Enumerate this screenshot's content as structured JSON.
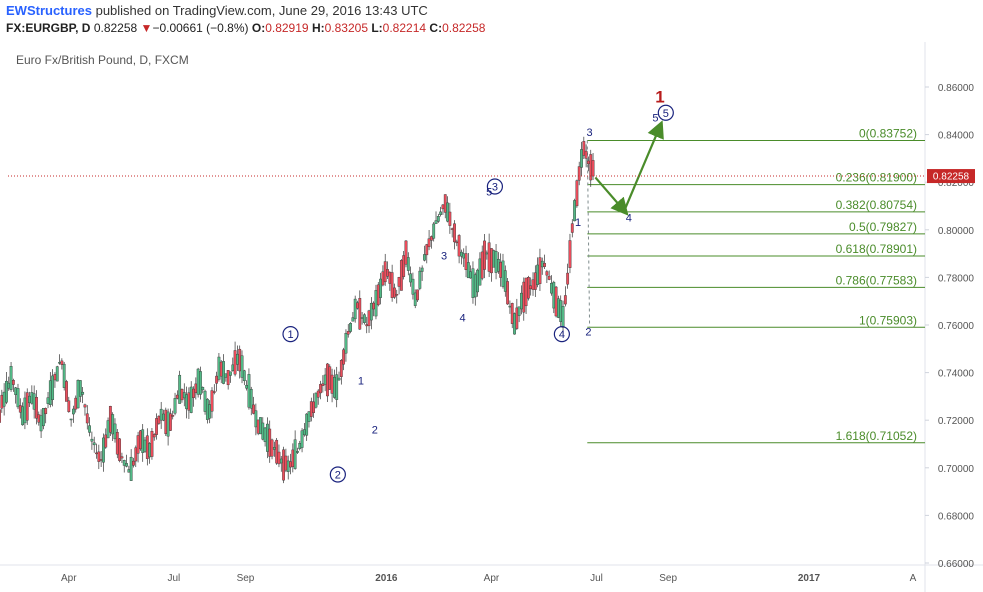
{
  "header": {
    "author": "EWStructures",
    "published_text": "published on TradingView.com, June 29, 2016 13:43 UTC",
    "symbol": "FX:EURGBP, D",
    "last": "0.82258",
    "change_arrow": "▼",
    "change": "−0.00661 (−0.8%)",
    "open_label": "O:",
    "open": "0.82919",
    "high_label": "H:",
    "high": "0.83205",
    "low_label": "L:",
    "low": "0.82214",
    "close_label": "C:",
    "close": "0.82258"
  },
  "chart_data": {
    "type": "candlestick",
    "title": "Euro Fx/British Pound, D, FXCM",
    "ylim": [
      0.66,
      0.868
    ],
    "y_ticks": [
      "0.86000",
      "0.84000",
      "0.82000",
      "0.80000",
      "0.78000",
      "0.76000",
      "0.74000",
      "0.72000",
      "0.70000",
      "0.68000",
      "0.66000"
    ],
    "x_ticks": [
      "Apr",
      "Jul",
      "Sep",
      "2016",
      "Apr",
      "Jul",
      "Sep",
      "2017",
      "A"
    ],
    "last_price": 0.82258,
    "last_price_label": "0.82258",
    "colors": {
      "up": "#53b987",
      "down": "#eb4d5c",
      "fib": "#4a8c2a",
      "wave": "#1a237e",
      "target": "#b71c1c",
      "price_line": "#c62828",
      "axis_text": "#555555"
    },
    "price_path": [
      [
        0.705,
        0.73
      ],
      [
        0.728,
        0.738
      ],
      [
        0.738,
        0.722
      ],
      [
        0.722,
        0.73
      ],
      [
        0.73,
        0.718
      ],
      [
        0.718,
        0.733
      ],
      [
        0.733,
        0.746
      ],
      [
        0.746,
        0.72
      ],
      [
        0.72,
        0.735
      ],
      [
        0.735,
        0.712
      ],
      [
        0.712,
        0.703
      ],
      [
        0.703,
        0.721
      ],
      [
        0.721,
        0.706
      ],
      [
        0.706,
        0.698
      ],
      [
        0.698,
        0.712
      ],
      [
        0.712,
        0.707
      ],
      [
        0.707,
        0.722
      ],
      [
        0.722,
        0.718
      ],
      [
        0.718,
        0.733
      ],
      [
        0.733,
        0.727
      ],
      [
        0.727,
        0.738
      ],
      [
        0.738,
        0.722
      ],
      [
        0.722,
        0.742
      ],
      [
        0.742,
        0.738
      ],
      [
        0.738,
        0.747
      ],
      [
        0.747,
        0.732
      ],
      [
        0.732,
        0.718
      ],
      [
        0.718,
        0.712
      ],
      [
        0.712,
        0.705
      ],
      [
        0.705,
        0.7
      ],
      [
        0.7,
        0.707
      ],
      [
        0.707,
        0.72
      ],
      [
        0.72,
        0.73
      ],
      [
        0.73,
        0.738
      ],
      [
        0.738,
        0.733
      ],
      [
        0.733,
        0.755
      ],
      [
        0.755,
        0.768
      ],
      [
        0.768,
        0.76
      ],
      [
        0.76,
        0.77
      ],
      [
        0.77,
        0.784
      ],
      [
        0.784,
        0.772
      ],
      [
        0.772,
        0.79
      ],
      [
        0.79,
        0.77
      ],
      [
        0.77,
        0.79
      ],
      [
        0.79,
        0.802
      ],
      [
        0.802,
        0.811
      ],
      [
        0.811,
        0.797
      ],
      [
        0.797,
        0.787
      ],
      [
        0.787,
        0.775
      ],
      [
        0.775,
        0.79
      ],
      [
        0.79,
        0.787
      ],
      [
        0.787,
        0.78
      ],
      [
        0.78,
        0.76
      ],
      [
        0.76,
        0.773
      ],
      [
        0.773,
        0.778
      ],
      [
        0.778,
        0.787
      ],
      [
        0.787,
        0.773
      ],
      [
        0.773,
        0.762
      ],
      [
        0.762,
        0.805
      ],
      [
        0.805,
        0.836
      ],
      [
        0.836,
        0.823
      ]
    ],
    "fib_levels": [
      {
        "label": "0(0.83752)",
        "price": 0.83752
      },
      {
        "label": "0.236(0.81900)",
        "price": 0.819
      },
      {
        "label": "0.382(0.80754)",
        "price": 0.80754
      },
      {
        "label": "0.5(0.79827)",
        "price": 0.79827
      },
      {
        "label": "0.618(0.78901)",
        "price": 0.78901
      },
      {
        "label": "0.786(0.77583)",
        "price": 0.77583
      },
      {
        "label": "1(0.75903)",
        "price": 0.75903
      },
      {
        "label": "1.618(0.71052)",
        "price": 0.71052
      }
    ],
    "wave_labels": [
      {
        "text": "1",
        "circled": true,
        "date": "2015-10-10",
        "price": 0.7545
      },
      {
        "text": "2",
        "circled": true,
        "date": "2015-11-20",
        "price": 0.6955
      },
      {
        "text": "1",
        "circled": false,
        "date": "2015-12-10",
        "price": 0.735
      },
      {
        "text": "2",
        "circled": false,
        "date": "2015-12-22",
        "price": 0.7145
      },
      {
        "text": "3",
        "circled": false,
        "date": "2016-02-20",
        "price": 0.7875
      },
      {
        "text": "4",
        "circled": false,
        "date": "2016-03-07",
        "price": 0.7615
      },
      {
        "text": "5",
        "circled": false,
        "date": "2016-03-30",
        "price": 0.8145
      },
      {
        "text": "3",
        "circled": true,
        "date": "2016-04-04",
        "price": 0.8165
      },
      {
        "text": "4",
        "circled": true,
        "date": "2016-06-01",
        "price": 0.7545
      },
      {
        "text": "1",
        "circled": false,
        "date": "2016-06-15",
        "price": 0.8015
      },
      {
        "text": "2",
        "circled": false,
        "date": "2016-06-24",
        "price": 0.7555
      },
      {
        "text": "3",
        "circled": false,
        "date": "2016-06-25",
        "price": 0.8395
      },
      {
        "text": "4",
        "circled": false,
        "date": "2016-07-29",
        "price": 0.8035
      },
      {
        "text": "5",
        "circled": false,
        "date": "2016-08-21",
        "price": 0.8455
      },
      {
        "text": "5",
        "circled": true,
        "date": "2016-08-30",
        "price": 0.8475
      },
      {
        "text": "1",
        "circled": false,
        "date": "2016-08-25",
        "price": 0.8535
      }
    ],
    "projection": [
      {
        "date": "2016-06-30",
        "price": 0.822
      },
      {
        "date": "2016-07-25",
        "price": 0.808
      },
      {
        "date": "2016-08-25",
        "price": 0.8435
      }
    ]
  }
}
